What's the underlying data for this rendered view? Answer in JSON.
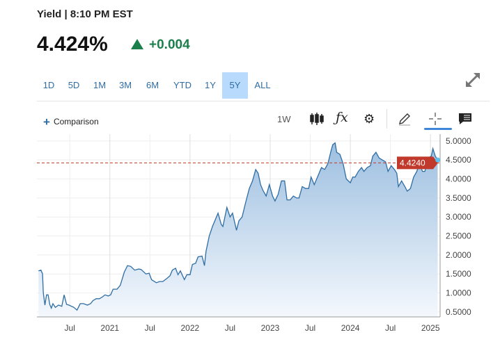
{
  "header": {
    "title": "Yield | 8:10 PM EST",
    "price": "4.424%",
    "change": "+0.004",
    "change_color": "#1a7f4b"
  },
  "ranges": [
    "1D",
    "5D",
    "1M",
    "3M",
    "6M",
    "YTD",
    "1Y",
    "5Y",
    "ALL"
  ],
  "active_range": "5Y",
  "toolbar": {
    "comparison": "Comparison",
    "interval": "1W",
    "icons": [
      "candlestick-icon",
      "function-icon",
      "gear-icon",
      "pencil-icon",
      "crosshair-icon",
      "comment-icon"
    ]
  },
  "chart_data": {
    "type": "area",
    "title": "Yield",
    "xlabel": "",
    "ylabel": "",
    "xlim": [
      2020.09,
      2025.12
    ],
    "ylim": [
      0.37,
      5.18
    ],
    "grid": true,
    "x_ticks": [
      {
        "v": 2020.5,
        "label": "Jul"
      },
      {
        "v": 2021,
        "label": "2021"
      },
      {
        "v": 2021.5,
        "label": "Jul"
      },
      {
        "v": 2022,
        "label": "2022"
      },
      {
        "v": 2022.5,
        "label": "Jul"
      },
      {
        "v": 2023,
        "label": "2023"
      },
      {
        "v": 2023.5,
        "label": "Jul"
      },
      {
        "v": 2024,
        "label": "2024"
      },
      {
        "v": 2024.5,
        "label": "Jul"
      },
      {
        "v": 2025,
        "label": "2025"
      }
    ],
    "y_ticks": [
      "0.5000",
      "1.0000",
      "1.5000",
      "2.0000",
      "2.5000",
      "3.0000",
      "3.5000",
      "4.0000",
      "4.5000",
      "5.0000"
    ],
    "last_value": 4.424,
    "last_label": "4.4240",
    "line_color": "#2f6da3",
    "ref_color": "#c0392b",
    "x": [
      2020.11,
      2020.14,
      2020.16,
      2020.17,
      2020.19,
      2020.21,
      2020.23,
      2020.25,
      2020.27,
      2020.29,
      2020.32,
      2020.36,
      2020.4,
      2020.43,
      2020.46,
      2020.49,
      2020.55,
      2020.59,
      2020.63,
      2020.67,
      2020.72,
      2020.76,
      2020.79,
      2020.83,
      2020.87,
      2020.91,
      2020.94,
      2020.98,
      2021.01,
      2021.04,
      2021.09,
      2021.13,
      2021.18,
      2021.22,
      2021.26,
      2021.31,
      2021.36,
      2021.39,
      2021.45,
      2021.49,
      2021.52,
      2021.58,
      2021.62,
      2021.66,
      2021.71,
      2021.75,
      2021.78,
      2021.82,
      2021.85,
      2021.88,
      2021.93,
      2021.96,
      2022.0,
      2022.03,
      2022.07,
      2022.1,
      2022.15,
      2022.18,
      2022.2,
      2022.24,
      2022.28,
      2022.31,
      2022.35,
      2022.39,
      2022.41,
      2022.46,
      2022.5,
      2022.53,
      2022.58,
      2022.61,
      2022.65,
      2022.69,
      2022.74,
      2022.78,
      2022.82,
      2022.85,
      2022.88,
      2022.91,
      2022.95,
      2022.99,
      2023.03,
      2023.06,
      2023.1,
      2023.14,
      2023.18,
      2023.21,
      2023.25,
      2023.29,
      2023.33,
      2023.36,
      2023.4,
      2023.44,
      2023.48,
      2023.51,
      2023.55,
      2023.59,
      2023.64,
      2023.68,
      2023.72,
      2023.76,
      2023.78,
      2023.81,
      2023.83,
      2023.87,
      2023.91,
      2023.95,
      2024.0,
      2024.03,
      2024.06,
      2024.1,
      2024.14,
      2024.17,
      2024.21,
      2024.25,
      2024.28,
      2024.32,
      2024.36,
      2024.4,
      2024.44,
      2024.47,
      2024.51,
      2024.55,
      2024.58,
      2024.6,
      2024.64,
      2024.68,
      2024.71,
      2024.75,
      2024.79,
      2024.83,
      2024.86,
      2024.9,
      2024.93,
      2024.97,
      2025.01,
      2025.03,
      2025.06,
      2025.09
    ],
    "y": [
      1.58,
      1.6,
      1.5,
      1.0,
      0.68,
      0.95,
      0.95,
      0.7,
      0.6,
      0.72,
      0.62,
      0.68,
      0.65,
      0.95,
      0.7,
      0.68,
      0.62,
      0.55,
      0.72,
      0.72,
      0.68,
      0.72,
      0.8,
      0.85,
      0.85,
      0.9,
      0.95,
      0.92,
      0.95,
      1.1,
      1.1,
      1.2,
      1.55,
      1.72,
      1.7,
      1.6,
      1.63,
      1.62,
      1.5,
      1.52,
      1.35,
      1.27,
      1.3,
      1.3,
      1.38,
      1.45,
      1.6,
      1.65,
      1.48,
      1.58,
      1.35,
      1.48,
      1.48,
      1.75,
      1.78,
      1.95,
      1.97,
      1.72,
      2.1,
      2.5,
      2.75,
      2.9,
      3.1,
      2.8,
      2.75,
      3.25,
      3.0,
      3.1,
      2.65,
      2.9,
      3.0,
      3.35,
      3.75,
      3.95,
      4.25,
      4.15,
      3.85,
      3.7,
      3.55,
      3.85,
      3.55,
      3.42,
      3.6,
      3.95,
      3.95,
      3.45,
      3.45,
      3.55,
      3.5,
      3.5,
      3.8,
      3.75,
      3.75,
      4.05,
      3.85,
      4.05,
      4.3,
      4.25,
      4.4,
      4.75,
      4.9,
      4.95,
      4.7,
      4.65,
      4.4,
      4.0,
      3.9,
      4.05,
      4.05,
      4.2,
      4.3,
      4.2,
      4.3,
      4.35,
      4.6,
      4.7,
      4.55,
      4.5,
      4.45,
      4.2,
      4.35,
      4.25,
      4.15,
      3.8,
      3.95,
      3.8,
      3.68,
      3.75,
      4.05,
      4.2,
      4.4,
      4.2,
      4.2,
      4.55,
      4.6,
      4.8,
      4.6,
      4.5
    ]
  }
}
